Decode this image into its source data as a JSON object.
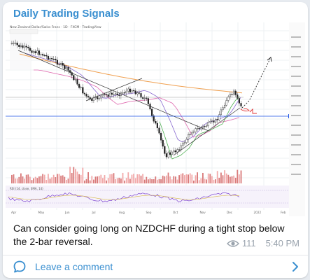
{
  "channel": {
    "name": "Daily Trading Signals"
  },
  "chart": {
    "header": "New Zealand Dollar/Swiss Franc · 1D · FXCM · TradingView",
    "x_labels": [
      "Apr",
      "May",
      "Jun",
      "Jul",
      "Aug",
      "Sep",
      "Oct",
      "Nov",
      "Dec",
      "2022",
      "Feb"
    ],
    "price_tag": "0.6225",
    "indicator_label": "RSI (14, close, SMA, 14)",
    "accent_colors": {
      "price_line": "#1e53e5",
      "ma_orange": "#f0a050",
      "ma_pink": "#e06bb0",
      "annotation": "#e03030"
    }
  },
  "message": {
    "text": "Can consider going long on NZDCHF during a tight stop below the 2-bar reversal.",
    "views": "111",
    "time": "5:40 PM"
  },
  "comments": {
    "label": "Leave a comment"
  }
}
